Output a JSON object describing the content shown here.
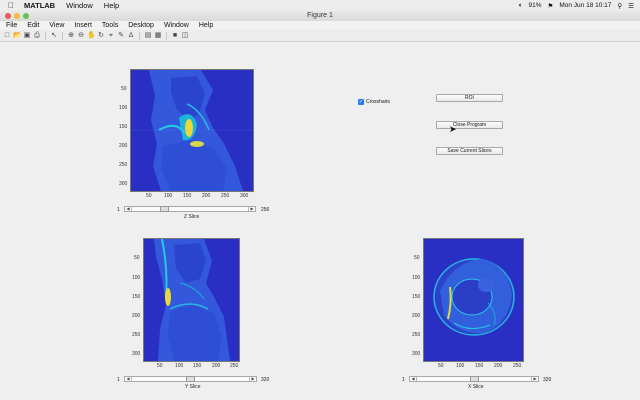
{
  "os_menu": {
    "app_name": "MATLAB",
    "items": [
      "Window",
      "Help"
    ],
    "battery": "91%",
    "clock": "Mon Jun 18  10:17"
  },
  "window": {
    "title": "Figure 1"
  },
  "figure_menu": [
    "File",
    "Edit",
    "View",
    "Insert",
    "Tools",
    "Desktop",
    "Window",
    "Help"
  ],
  "controls": {
    "crosshairs_label": "Crosshairs",
    "crosshairs_checked": true,
    "roi_button": "ROI",
    "close_button": "Close Program",
    "save_button": "Save Current Slices"
  },
  "views": {
    "z": {
      "y_ticks": [
        "50",
        "100",
        "150",
        "200",
        "250",
        "300"
      ],
      "x_ticks": [
        "50",
        "100",
        "150",
        "200",
        "250",
        "300"
      ],
      "slider_min": "1",
      "slider_max": "256",
      "slider_label": "Z Slice",
      "slider_fraction": 0.27
    },
    "y": {
      "y_ticks": [
        "50",
        "100",
        "150",
        "200",
        "250",
        "300"
      ],
      "x_ticks": [
        "50",
        "100",
        "150",
        "200",
        "250"
      ],
      "slider_min": "1",
      "slider_max": "320",
      "slider_label": "Y Slice",
      "slider_fraction": 0.5
    },
    "x": {
      "y_ticks": [
        "50",
        "100",
        "150",
        "200",
        "250",
        "300"
      ],
      "x_ticks": [
        "50",
        "100",
        "150",
        "200",
        "250"
      ],
      "slider_min": "1",
      "slider_max": "320",
      "slider_label": "X Slice",
      "slider_fraction": 0.5
    }
  },
  "colors": {
    "image_bg": "#2a2fc4",
    "accent": "#2c7be5"
  },
  "icons": [
    "apple-icon",
    "new-figure-icon",
    "open-icon",
    "save-icon",
    "print-icon",
    "pointer-icon",
    "zoom-in-icon",
    "zoom-out-icon",
    "pan-icon",
    "rotate-icon",
    "data-cursor-icon",
    "brush-icon",
    "link-icon",
    "colorbar-icon",
    "legend-icon",
    "hide-tools-icon",
    "show-tools-icon"
  ]
}
